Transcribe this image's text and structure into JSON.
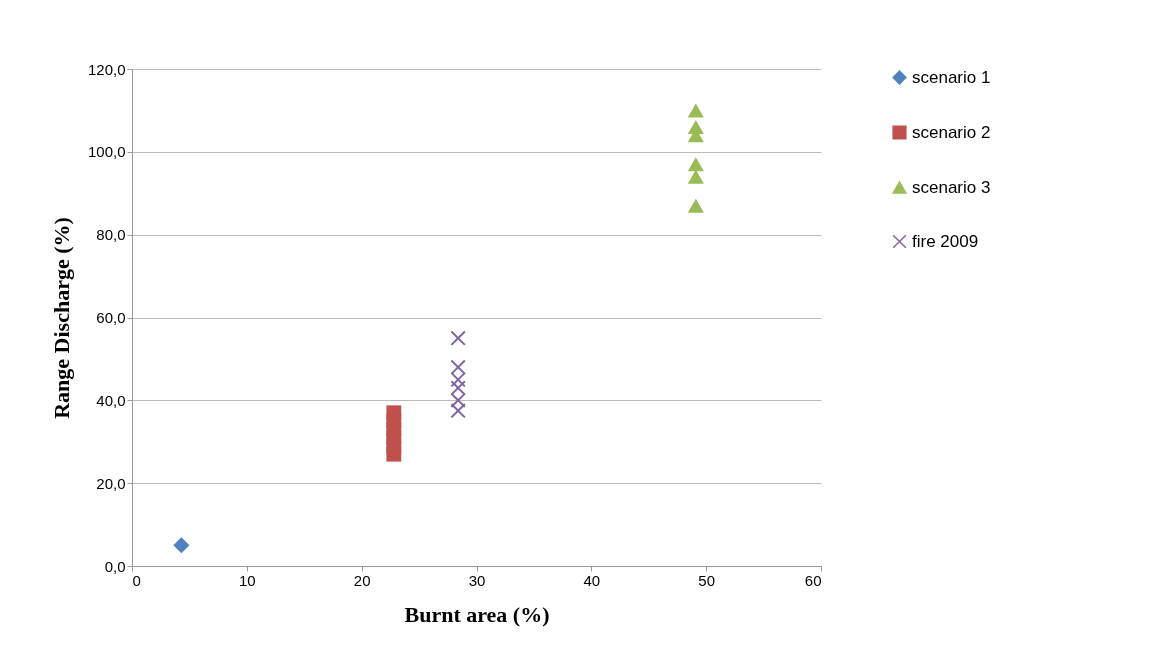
{
  "chart_data": {
    "type": "scatter",
    "xlabel": "Burnt area (%)",
    "ylabel": "Range Discharge (%)",
    "xlim": [
      0,
      60
    ],
    "xticks": [
      0,
      10,
      20,
      30,
      40,
      50,
      60
    ],
    "ylim": [
      0,
      120
    ],
    "yticks": [
      {
        "value": 0,
        "label": "0,0"
      },
      {
        "value": 20,
        "label": "20,0"
      },
      {
        "value": 40,
        "label": "40,0"
      },
      {
        "value": 60,
        "label": "60,0"
      },
      {
        "value": 80,
        "label": "80,0"
      },
      {
        "value": 100,
        "label": "100,0"
      },
      {
        "value": 120,
        "label": "120,0"
      }
    ],
    "grid": "y",
    "legend": "right",
    "series": [
      {
        "name": "scenario 1",
        "color": "#4f81bd",
        "marker": "diamond",
        "x": [
          4.3
        ],
        "values": [
          5
        ]
      },
      {
        "name": "scenario 2",
        "color": "#c0504d",
        "marker": "square",
        "x": [
          22.8,
          22.8,
          22.8,
          22.8,
          22.8,
          22.8
        ],
        "values": [
          27,
          29,
          31,
          33,
          35,
          37
        ]
      },
      {
        "name": "scenario 3",
        "color": "#9bbb59",
        "marker": "triangle",
        "x": [
          49.1,
          49.1,
          49.1,
          49.1,
          49.1,
          49.1
        ],
        "values": [
          110,
          106,
          104,
          97,
          94,
          87
        ]
      },
      {
        "name": "fire 2009",
        "color": "#8064a2",
        "marker": "cross",
        "x": [
          28.4,
          28.4,
          28.4,
          28.4,
          28.4,
          28.4
        ],
        "values": [
          55,
          48,
          45,
          43,
          40,
          37.5
        ]
      }
    ]
  }
}
